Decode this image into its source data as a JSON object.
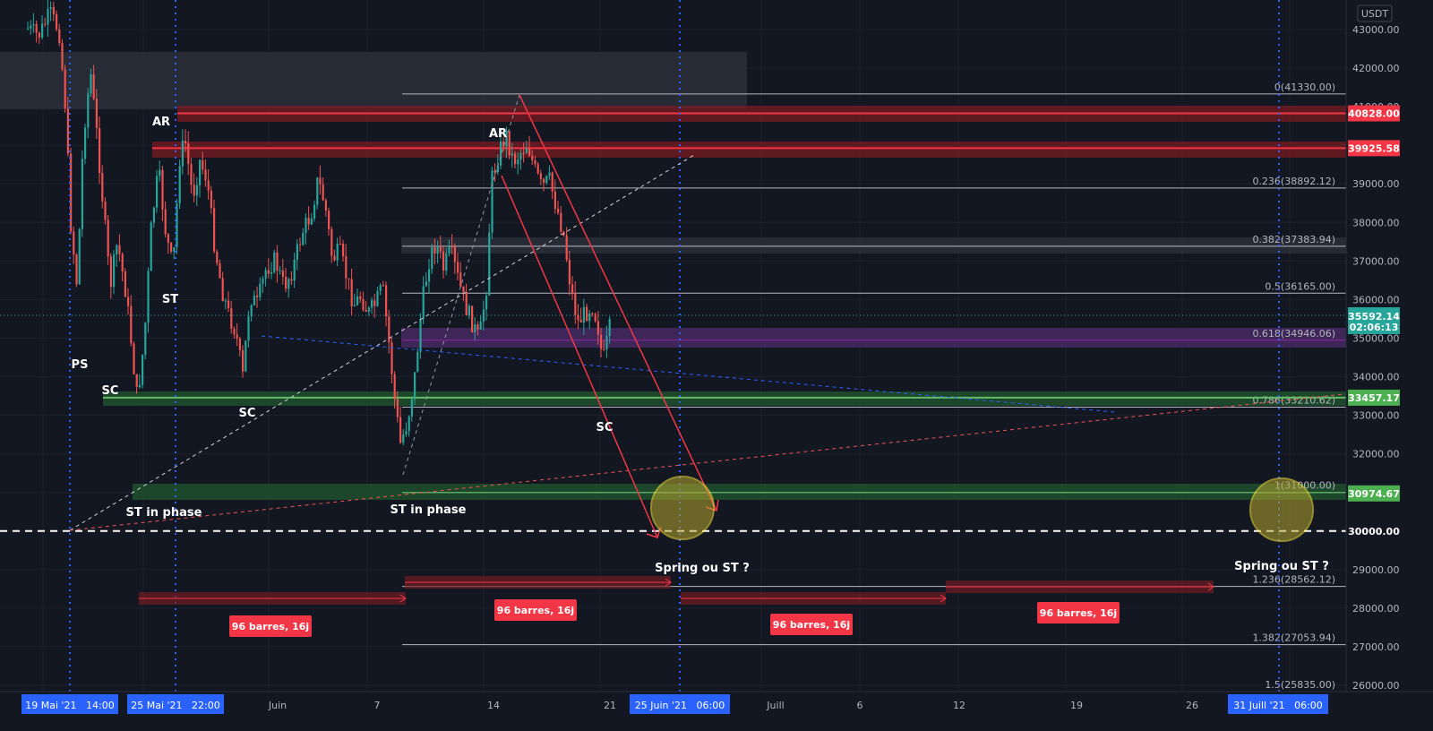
{
  "currency": "USDT",
  "chart_data": {
    "type": "candlestick",
    "y_axis": {
      "min": 25600,
      "max": 43400,
      "ticks": [
        43000,
        42000,
        41000,
        40000,
        39000,
        38000,
        37000,
        36000,
        35000,
        34000,
        33000,
        32000,
        31000,
        30000,
        29000,
        28000,
        27000,
        26000
      ],
      "tick_labels": [
        "43000.00",
        "42000.00",
        "41000.00",
        "40000.00",
        "39000.00",
        "38000.00",
        "37000.00",
        "36000.00",
        "35000.00",
        "34000.00",
        "33000.00",
        "32000.00",
        "31000.00",
        "30000.00",
        "29000.00",
        "28000.00",
        "27000.00",
        "26000.00"
      ]
    },
    "x_axis": {
      "labels": [
        "Juin",
        "7",
        "14",
        "21",
        "Juill",
        "6",
        "12",
        "19",
        "26"
      ],
      "highlighted_dates": [
        "19 Mai '21   14:00",
        "25 Mai '21   22:00",
        "25 Juin '21   06:00",
        "31 Juill '21   06:00"
      ]
    },
    "last_price": {
      "value": "35592.14",
      "countdown": "02:06:13",
      "color": "#26a69a"
    },
    "price_tags": [
      {
        "value": "40828.00",
        "color": "#f23645"
      },
      {
        "value": "39925.58",
        "color": "#f23645"
      },
      {
        "value": "33457.17",
        "color": "#4caf50"
      },
      {
        "value": "30974.67",
        "color": "#4caf50"
      },
      {
        "value": "30000.00",
        "color": "#ffffff"
      }
    ],
    "fib_levels": [
      {
        "ratio": "0",
        "price": 41330,
        "label": "0(41330.00)"
      },
      {
        "ratio": "0.236",
        "price": 38892.12,
        "label": "0.236(38892.12)"
      },
      {
        "ratio": "0.382",
        "price": 37383.94,
        "label": "0.382(37383.94)"
      },
      {
        "ratio": "0.5",
        "price": 36165,
        "label": "0.5(36165.00)"
      },
      {
        "ratio": "0.618",
        "price": 34946.06,
        "label": "0.618(34946.06)"
      },
      {
        "ratio": "0.786",
        "price": 33210.62,
        "label": "0.786(33210.62)"
      },
      {
        "ratio": "1",
        "price": 31000,
        "label": "1(31000.00)"
      },
      {
        "ratio": "1.236",
        "price": 28562.12,
        "label": "1.236(28562.12)"
      },
      {
        "ratio": "1.382",
        "price": 27053.94,
        "label": "1.382(27053.94)"
      },
      {
        "ratio": "1.5",
        "price": 25835,
        "label": "1.5(25835.00)"
      }
    ],
    "annotations": [
      "PS",
      "SC",
      "AR",
      "ST",
      "SC",
      "ST in phase",
      "ST in phase",
      "AR",
      "SC",
      "Spring ou ST ?",
      "Spring ou ST ?"
    ],
    "bar_count_labels": [
      "96 barres, 16j",
      "96 barres, 16j",
      "96 barres, 16j",
      "96 barres, 16j"
    ],
    "colors": {
      "up": "#26a69a",
      "down": "#ef5350",
      "background": "#131722",
      "support": "#4caf50",
      "resistance": "#f23645",
      "highlight": "#2962ff",
      "circle": "#ffeb3b"
    }
  }
}
